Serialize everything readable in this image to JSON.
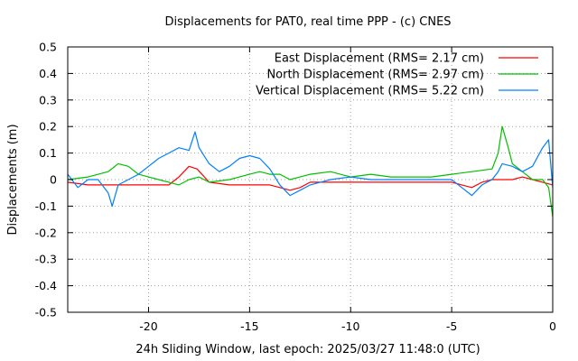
{
  "chart_data": {
    "type": "line",
    "title": "Displacements for PAT0, real time PPP - (c) CNES",
    "xlabel": "24h Sliding Window, last epoch: 2025/03/27 11:48:0 (UTC)",
    "ylabel": "Displacements (m)",
    "xlim": [
      -24,
      0
    ],
    "ylim": [
      -0.5,
      0.5
    ],
    "xticks": [
      -20,
      -15,
      -10,
      -5,
      0
    ],
    "yticks": [
      -0.5,
      -0.4,
      -0.3,
      -0.2,
      -0.1,
      0,
      0.1,
      0.2,
      0.3,
      0.4,
      0.5
    ],
    "grid": true,
    "legend_position": "top-right",
    "series": [
      {
        "name": "East Displacement (RMS= 2.17 cm)",
        "color": "#ff0000",
        "x": [
          -24,
          -23,
          -22,
          -21,
          -20,
          -19,
          -18.5,
          -18,
          -17.6,
          -17,
          -16,
          -15,
          -14,
          -13.5,
          -13,
          -12.5,
          -12,
          -11,
          -10,
          -9,
          -8,
          -7,
          -6,
          -5,
          -4.5,
          -4,
          -3.5,
          -3,
          -2.5,
          -2,
          -1.5,
          -1,
          -0.5,
          0
        ],
        "y": [
          -0.01,
          -0.02,
          -0.02,
          -0.02,
          -0.02,
          -0.02,
          0.01,
          0.05,
          0.04,
          -0.01,
          -0.02,
          -0.02,
          -0.02,
          -0.03,
          -0.04,
          -0.03,
          -0.01,
          -0.01,
          -0.01,
          -0.01,
          -0.01,
          -0.01,
          -0.01,
          -0.01,
          -0.02,
          -0.03,
          -0.01,
          0.0,
          0.0,
          0.0,
          0.01,
          0.0,
          -0.01,
          -0.02
        ]
      },
      {
        "name": "North Displacement (RMS= 2.97 cm)",
        "color": "#00c000",
        "x": [
          -24,
          -23,
          -22,
          -21.5,
          -21,
          -20.5,
          -20,
          -19.5,
          -19,
          -18.5,
          -18,
          -17.5,
          -17,
          -16,
          -15,
          -14.5,
          -14,
          -13.5,
          -13,
          -12.5,
          -12,
          -11,
          -10,
          -9,
          -8,
          -7,
          -6,
          -5,
          -4,
          -3,
          -2.7,
          -2.5,
          -2.2,
          -2,
          -1.5,
          -1,
          -0.5,
          -0.2,
          0
        ],
        "y": [
          0.0,
          0.01,
          0.03,
          0.06,
          0.05,
          0.02,
          0.01,
          0.0,
          -0.01,
          -0.02,
          0.0,
          0.01,
          -0.01,
          0.0,
          0.02,
          0.03,
          0.02,
          0.02,
          0.0,
          0.01,
          0.02,
          0.03,
          0.01,
          0.02,
          0.01,
          0.01,
          0.01,
          0.02,
          0.03,
          0.04,
          0.1,
          0.2,
          0.12,
          0.06,
          0.03,
          0.0,
          0.0,
          -0.03,
          -0.14
        ]
      },
      {
        "name": "Vertical Displacement (RMS= 5.22 cm)",
        "color": "#0080ff",
        "x": [
          -24,
          -23.5,
          -23,
          -22.5,
          -22,
          -21.8,
          -21.5,
          -21,
          -20.5,
          -20,
          -19.5,
          -19,
          -18.5,
          -18,
          -17.7,
          -17.5,
          -17,
          -16.5,
          -16,
          -15.5,
          -15,
          -14.5,
          -14,
          -13.5,
          -13,
          -12.5,
          -12,
          -11.5,
          -11,
          -10,
          -9,
          -8,
          -7,
          -6,
          -5,
          -4.5,
          -4,
          -3.5,
          -3,
          -2.7,
          -2.5,
          -2,
          -1.5,
          -1,
          -0.5,
          -0.2,
          0
        ],
        "y": [
          0.02,
          -0.03,
          0.0,
          0.0,
          -0.05,
          -0.1,
          -0.02,
          0.0,
          0.02,
          0.05,
          0.08,
          0.1,
          0.12,
          0.11,
          0.18,
          0.12,
          0.06,
          0.03,
          0.05,
          0.08,
          0.09,
          0.08,
          0.04,
          -0.02,
          -0.06,
          -0.04,
          -0.02,
          -0.01,
          0.0,
          0.01,
          0.0,
          0.0,
          0.0,
          0.0,
          0.0,
          -0.03,
          -0.06,
          -0.02,
          0.0,
          0.03,
          0.06,
          0.05,
          0.03,
          0.05,
          0.12,
          0.15,
          -0.03
        ]
      }
    ]
  }
}
